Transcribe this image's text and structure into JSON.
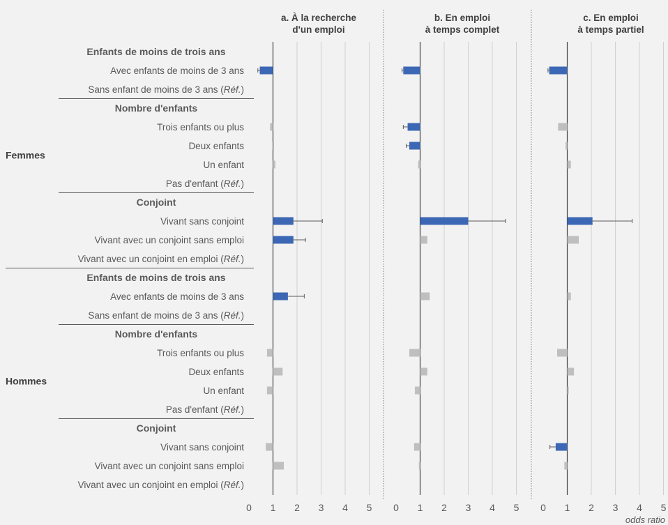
{
  "chart_data": {
    "type": "bar",
    "orientation": "horizontal",
    "reference_value": 1,
    "xlim": [
      0,
      5
    ],
    "xticks": [
      0,
      1,
      2,
      3,
      4,
      5
    ],
    "x_unit_label": "odds ratio",
    "significant_color": "#3c67b4",
    "non_significant_color": "#bfbfbf",
    "grid": true,
    "panels": [
      {
        "title_lines": [
          "a. À la recherche",
          "d'un emploi"
        ]
      },
      {
        "title_lines": [
          "b. En emploi",
          "à temps complet"
        ]
      },
      {
        "title_lines": [
          "c. En emploi",
          "à temps partiel"
        ]
      }
    ],
    "groups": [
      {
        "label": "Femmes",
        "rows": [
          {
            "label": "Enfants de moins de trois ans",
            "kind": "heading"
          },
          {
            "label": "Avec enfants de moins de 3 ans",
            "values": [
              {
                "or": 0.45,
                "sig": true,
                "ci_low": 0.37
              },
              {
                "or": 0.3,
                "sig": true,
                "ci_low": 0.25
              },
              {
                "or": 0.25,
                "sig": true,
                "ci_low": 0.2
              }
            ]
          },
          {
            "label": "Sans enfant de moins de 3 ans (",
            "ref": "Réf.",
            "values": null
          },
          {
            "label": "Nombre d'enfants",
            "kind": "heading"
          },
          {
            "label": "Trois enfants ou plus",
            "values": [
              {
                "or": 0.88,
                "sig": false
              },
              {
                "or": 0.48,
                "sig": true,
                "ci_low": 0.3
              },
              {
                "or": 0.62,
                "sig": false
              }
            ]
          },
          {
            "label": "Deux enfants",
            "values": [
              {
                "or": 1.02,
                "sig": false
              },
              {
                "or": 0.55,
                "sig": true,
                "ci_low": 0.42
              },
              {
                "or": 0.93,
                "sig": false
              }
            ]
          },
          {
            "label": "Un enfant",
            "values": [
              {
                "or": 1.1,
                "sig": false
              },
              {
                "or": 0.92,
                "sig": false
              },
              {
                "or": 1.15,
                "sig": false
              }
            ]
          },
          {
            "label": "Pas d'enfant (",
            "ref": "Réf.",
            "values": null
          },
          {
            "label": "Conjoint",
            "kind": "heading"
          },
          {
            "label": "Vivant sans conjoint",
            "values": [
              {
                "or": 1.85,
                "sig": true,
                "ci_high": 3.05
              },
              {
                "or": 3.0,
                "sig": true,
                "ci_high": 4.55
              },
              {
                "or": 2.05,
                "sig": true,
                "ci_high": 3.7
              }
            ]
          },
          {
            "label": "Vivant avec un conjoint sans emploi",
            "values": [
              {
                "or": 1.85,
                "sig": true,
                "ci_high": 2.35
              },
              {
                "or": 1.3,
                "sig": false
              },
              {
                "or": 1.48,
                "sig": false
              }
            ]
          },
          {
            "label": "Vivant avec un conjoint en emploi  (",
            "ref": "Réf.",
            "values": null
          }
        ]
      },
      {
        "label": "Hommes",
        "rows": [
          {
            "label": "Enfants de moins de trois ans",
            "kind": "heading"
          },
          {
            "label": "Avec enfants de moins de 3 ans",
            "values": [
              {
                "or": 1.62,
                "sig": true,
                "ci_high": 2.3
              },
              {
                "or": 1.4,
                "sig": false
              },
              {
                "or": 1.15,
                "sig": false
              }
            ]
          },
          {
            "label": "Sans enfant de moins de 3 ans (",
            "ref": "Réf.",
            "values": null
          },
          {
            "label": "Nombre d'enfants",
            "kind": "heading"
          },
          {
            "label": "Trois enfants ou plus",
            "values": [
              {
                "or": 0.75,
                "sig": false
              },
              {
                "or": 0.55,
                "sig": false
              },
              {
                "or": 0.58,
                "sig": false
              }
            ]
          },
          {
            "label": "Deux enfants",
            "values": [
              {
                "or": 1.4,
                "sig": false
              },
              {
                "or": 1.3,
                "sig": false
              },
              {
                "or": 1.28,
                "sig": false
              }
            ]
          },
          {
            "label": "Un enfant",
            "values": [
              {
                "or": 0.75,
                "sig": false
              },
              {
                "or": 0.78,
                "sig": false
              },
              {
                "or": 1.06,
                "sig": false
              }
            ]
          },
          {
            "label": "Pas d'enfant (",
            "ref": "Réf.",
            "values": null
          },
          {
            "label": "Conjoint",
            "kind": "heading"
          },
          {
            "label": "Vivant sans conjoint",
            "values": [
              {
                "or": 0.7,
                "sig": false
              },
              {
                "or": 0.75,
                "sig": false
              },
              {
                "or": 0.52,
                "sig": true,
                "ci_low": 0.28
              }
            ]
          },
          {
            "label": "Vivant avec un conjoint sans emploi",
            "values": [
              {
                "or": 1.45,
                "sig": false
              },
              {
                "or": 0.95,
                "sig": false
              },
              {
                "or": 0.88,
                "sig": false
              }
            ]
          },
          {
            "label": "Vivant avec un conjoint en emploi  (",
            "ref": "Réf.",
            "values": null
          }
        ]
      }
    ]
  }
}
